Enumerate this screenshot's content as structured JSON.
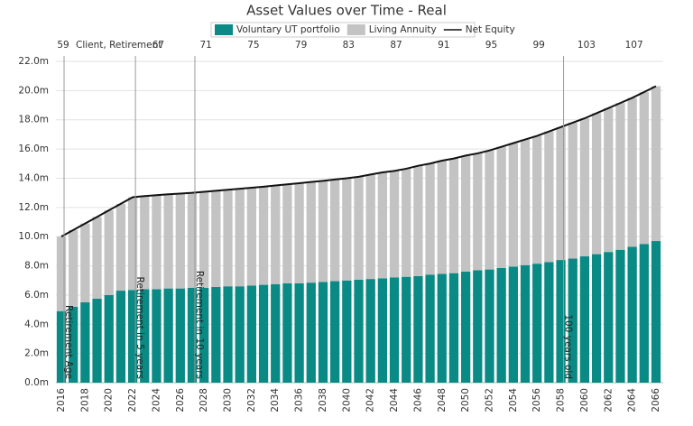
{
  "chart_data": {
    "type": "stacked_bar_line",
    "title": "Asset Values over Time - Real",
    "categories": [
      "2016",
      null,
      "2018",
      null,
      "2020",
      null,
      "2022",
      null,
      "2024",
      null,
      "2026",
      null,
      "2028",
      null,
      "2030",
      null,
      "2032",
      null,
      "2034",
      null,
      "2036",
      null,
      "2038",
      null,
      "2040",
      null,
      "2042",
      null,
      "2044",
      null,
      "2046",
      null,
      "2048",
      null,
      "2050",
      null,
      "2052",
      null,
      "2054",
      null,
      "2056",
      null,
      "2058",
      null,
      "2060",
      null,
      "2062",
      null,
      "2064",
      null,
      "2066"
    ],
    "top_axis": {
      "label": "Client, Retirement",
      "ages": [
        59,
        null,
        null,
        null,
        null,
        null,
        null,
        null,
        67,
        null,
        null,
        null,
        71,
        null,
        null,
        null,
        75,
        null,
        null,
        null,
        79,
        null,
        null,
        null,
        83,
        null,
        null,
        null,
        87,
        null,
        null,
        null,
        91,
        null,
        null,
        null,
        95,
        null,
        null,
        null,
        99,
        null,
        null,
        null,
        103,
        null,
        null,
        null,
        107,
        null,
        null
      ]
    },
    "series": [
      {
        "name": "Voluntary UT portfolio",
        "color": "#0a8a84",
        "kind": "bar",
        "values": [
          4.9,
          5.2,
          5.5,
          5.75,
          6.0,
          6.3,
          6.35,
          6.4,
          6.4,
          6.45,
          6.45,
          6.5,
          6.5,
          6.55,
          6.6,
          6.6,
          6.65,
          6.7,
          6.75,
          6.8,
          6.8,
          6.85,
          6.9,
          6.95,
          7.0,
          7.05,
          7.1,
          7.15,
          7.2,
          7.25,
          7.3,
          7.4,
          7.45,
          7.5,
          7.6,
          7.7,
          7.75,
          7.85,
          7.95,
          8.05,
          8.15,
          8.25,
          8.4,
          8.5,
          8.65,
          8.8,
          8.95,
          9.1,
          9.3,
          9.5,
          9.7
        ]
      },
      {
        "name": "Living Annuity",
        "color": "#c3c3c3",
        "kind": "bar",
        "values": [
          5.1,
          5.25,
          5.4,
          5.6,
          5.8,
          5.95,
          6.35,
          6.38,
          6.44,
          6.45,
          6.5,
          6.5,
          6.57,
          6.59,
          6.61,
          6.68,
          6.7,
          6.72,
          6.75,
          6.78,
          6.86,
          6.89,
          6.92,
          6.96,
          7.0,
          7.05,
          7.15,
          7.25,
          7.3,
          7.4,
          7.55,
          7.6,
          7.75,
          7.85,
          7.95,
          8.0,
          8.15,
          8.3,
          8.45,
          8.6,
          8.75,
          8.95,
          9.1,
          9.3,
          9.45,
          9.65,
          9.85,
          10.05,
          10.2,
          10.4,
          10.6
        ]
      },
      {
        "name": "Net Equity",
        "color": "#111111",
        "kind": "line",
        "values": [
          10.0,
          10.45,
          10.9,
          11.35,
          11.8,
          12.25,
          12.7,
          12.78,
          12.84,
          12.9,
          12.95,
          13.0,
          13.07,
          13.14,
          13.21,
          13.28,
          13.35,
          13.42,
          13.5,
          13.58,
          13.66,
          13.74,
          13.82,
          13.91,
          14.0,
          14.1,
          14.25,
          14.4,
          14.5,
          14.65,
          14.85,
          15.0,
          15.2,
          15.35,
          15.55,
          15.7,
          15.9,
          16.15,
          16.4,
          16.65,
          16.9,
          17.2,
          17.5,
          17.8,
          18.1,
          18.45,
          18.8,
          19.15,
          19.5,
          19.9,
          20.3
        ]
      }
    ],
    "markers": [
      {
        "label": "Retirement Age",
        "x": 2016
      },
      {
        "label": "Retirement in 5 years",
        "x": 2022
      },
      {
        "label": "Retirement in 10 years",
        "x": 2027
      },
      {
        "label": "100 years old",
        "x": 2058
      }
    ],
    "ylim": [
      0,
      22
    ],
    "yticks": [
      {
        "value": 0,
        "label": "0.0m"
      },
      {
        "value": 2,
        "label": "2.0m"
      },
      {
        "value": 4,
        "label": "4.0m"
      },
      {
        "value": 6,
        "label": "6.0m"
      },
      {
        "value": 8,
        "label": "8.0m"
      },
      {
        "value": 10,
        "label": "10.0m"
      },
      {
        "value": 12,
        "label": "12.0m"
      },
      {
        "value": 14,
        "label": "14.0m"
      },
      {
        "value": 16,
        "label": "16.0m"
      },
      {
        "value": 18,
        "label": "18.0m"
      },
      {
        "value": 20,
        "label": "20.0m"
      },
      {
        "value": 22,
        "label": "22.0m"
      }
    ],
    "grid": true
  }
}
